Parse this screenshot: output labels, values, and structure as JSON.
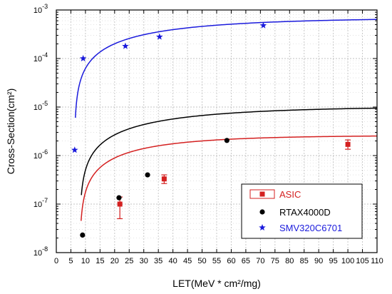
{
  "chart_data": {
    "type": "scatter",
    "xlabel": "LET(MeV * cm²/mg)",
    "ylabel": "Cross-Section(cm²)",
    "xlim": [
      0,
      110
    ],
    "ylim": [
      1e-08,
      0.001
    ],
    "yscale": "log",
    "x_ticks": [
      "0",
      "5",
      "10",
      "15",
      "20",
      "25",
      "30",
      "35",
      "40",
      "45",
      "50",
      "55",
      "60",
      "65",
      "70",
      "75",
      "80",
      "85",
      "90",
      "95",
      "100",
      "105",
      "110"
    ],
    "y_ticks": [
      {
        "base": "10",
        "exp": "-8"
      },
      {
        "base": "10",
        "exp": "-7"
      },
      {
        "base": "10",
        "exp": "-6"
      },
      {
        "base": "10",
        "exp": "-5"
      },
      {
        "base": "10",
        "exp": "-4"
      },
      {
        "base": "10",
        "exp": "-3"
      }
    ],
    "grid": true,
    "legend_position": "bottom-right",
    "series": [
      {
        "name": "ASIC",
        "marker": "square",
        "color": "#d42020",
        "points": [
          {
            "x": 21.8,
            "y": 1e-07,
            "err_low": 5e-08,
            "err_high": 1.4e-07
          },
          {
            "x": 37.0,
            "y": 3.3e-07,
            "err_low": 2.65e-07,
            "err_high": 4e-07
          },
          {
            "x": 100.0,
            "y": 1.7e-06,
            "err_low": 1.35e-06,
            "err_high": 2.1e-06
          }
        ],
        "fit": {
          "threshold": 8.0,
          "sat": 2.6e-06,
          "k": 0.035,
          "x_start": 8.5,
          "x_end": 110
        }
      },
      {
        "name": "RTAX4000D",
        "marker": "circle",
        "color": "#000000",
        "points": [
          {
            "x": 9.0,
            "y": 2.3e-08
          },
          {
            "x": 21.5,
            "y": 1.35e-07
          },
          {
            "x": 31.3,
            "y": 4e-07
          },
          {
            "x": 58.5,
            "y": 2.05e-06
          }
        ],
        "fit": {
          "threshold": 8.0,
          "sat": 1.03e-05,
          "k": 0.025,
          "x_start": 8.6,
          "x_end": 110
        }
      },
      {
        "name": "SMV320C6701",
        "marker": "star",
        "color": "#1a1adc",
        "points": [
          {
            "x": 6.3,
            "y": 1.3e-06
          },
          {
            "x": 9.2,
            "y": 0.0001
          },
          {
            "x": 23.7,
            "y": 0.00018
          },
          {
            "x": 35.4,
            "y": 0.00028
          },
          {
            "x": 71.0,
            "y": 0.00048
          }
        ],
        "fit": {
          "threshold": 6.2,
          "sat": 0.00069,
          "k": 0.025,
          "x_start": 6.55,
          "x_end": 110
        }
      }
    ]
  }
}
